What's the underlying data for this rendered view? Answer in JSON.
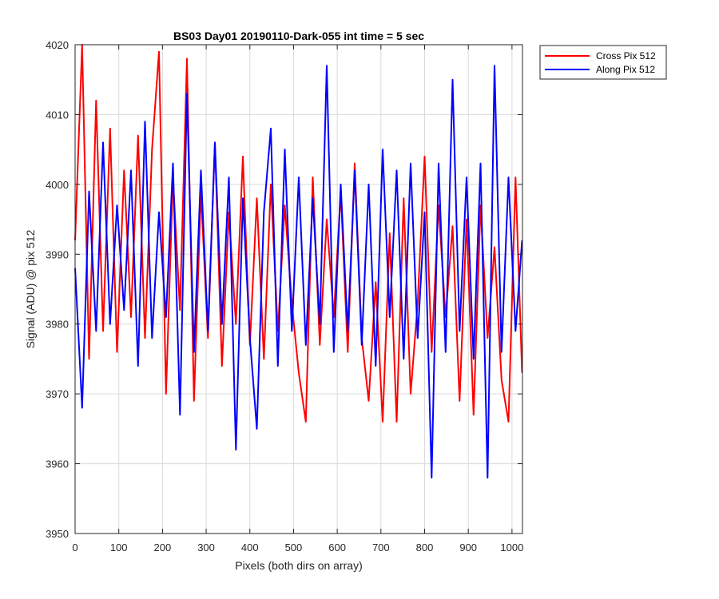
{
  "chart_data": {
    "type": "line",
    "title": "BS03 Day01 20190110-Dark-055 int time = 5 sec",
    "xlabel": "Pixels (both dirs on array)",
    "ylabel": "Signal (ADU) @ pix 512",
    "xlim": [
      0,
      1024
    ],
    "ylim": [
      3950,
      4020
    ],
    "xticks": [
      0,
      100,
      200,
      300,
      400,
      500,
      600,
      700,
      800,
      900,
      1000
    ],
    "yticks": [
      3950,
      3960,
      3970,
      3980,
      3990,
      4000,
      4010,
      4020
    ],
    "grid": true,
    "legend_position": "outside-top-right",
    "x": [
      0,
      16,
      32,
      48,
      64,
      80,
      96,
      112,
      128,
      144,
      160,
      176,
      192,
      208,
      224,
      240,
      256,
      272,
      288,
      304,
      320,
      336,
      352,
      368,
      384,
      400,
      416,
      432,
      448,
      464,
      480,
      496,
      512,
      528,
      544,
      560,
      576,
      592,
      608,
      624,
      640,
      656,
      672,
      688,
      704,
      720,
      736,
      752,
      768,
      784,
      800,
      816,
      832,
      848,
      864,
      880,
      896,
      912,
      928,
      944,
      960,
      976,
      992,
      1008,
      1023
    ],
    "series": [
      {
        "name": "Cross Pix 512",
        "color": "#ff0000",
        "values": [
          3992,
          4020,
          3975,
          4012,
          3979,
          4008,
          3976,
          4002,
          3981,
          4007,
          3978,
          4005,
          4019,
          3970,
          4001,
          3982,
          4018,
          3969,
          3999,
          3978,
          4006,
          3974,
          3996,
          3980,
          4004,
          3977,
          3998,
          3975,
          4000,
          3979,
          3997,
          3983,
          3973,
          3966,
          4001,
          3977,
          3995,
          3981,
          3999,
          3976,
          4003,
          3978,
          3969,
          3986,
          3966,
          3993,
          3966,
          3998,
          3970,
          3983,
          4004,
          3976,
          3997,
          3981,
          3994,
          3969,
          3995,
          3967,
          3997,
          3978,
          3991,
          3972,
          3966,
          4001,
          3973
        ]
      },
      {
        "name": "Along Pix 512",
        "color": "#0000ff",
        "values": [
          3988,
          3968,
          3999,
          3979,
          4006,
          3980,
          3997,
          3982,
          4002,
          3974,
          4009,
          3978,
          3996,
          3981,
          4003,
          3967,
          4013,
          3976,
          4002,
          3979,
          4006,
          3980,
          4001,
          3962,
          3998,
          3978,
          3965,
          3996,
          4008,
          3974,
          4005,
          3979,
          4001,
          3977,
          3998,
          3980,
          4017,
          3976,
          4000,
          3979,
          4002,
          3977,
          4000,
          3974,
          4005,
          3981,
          4002,
          3975,
          4003,
          3978,
          3996,
          3958,
          4003,
          3976,
          4015,
          3979,
          4001,
          3975,
          4003,
          3958,
          4017,
          3976,
          4001,
          3979,
          3992
        ]
      }
    ]
  }
}
